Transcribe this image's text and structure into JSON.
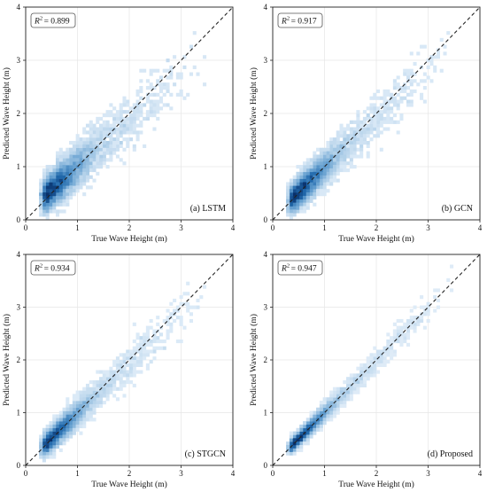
{
  "chart_data": [
    {
      "type": "heatmap",
      "panel_label": "(a) LSTM",
      "r2_label": "= 0.899",
      "xlabel": "True Wave Height (m)",
      "ylabel": "Predicted Wave Height (m)",
      "xlim": [
        0,
        4
      ],
      "ylim": [
        0,
        4
      ],
      "xticks": [
        "0",
        "1",
        "2",
        "3",
        "4"
      ],
      "yticks": [
        "0",
        "1",
        "2",
        "3",
        "4"
      ],
      "reference_line": "y = x (dashed)",
      "colormap": "Blues",
      "fit": {
        "slope": 0.86,
        "intercept": 0.14,
        "spread": 0.17
      },
      "x_range": [
        0.3,
        3.5
      ],
      "density_peak_x": 0.6
    },
    {
      "type": "heatmap",
      "panel_label": "(b) GCN",
      "r2_label": "= 0.917",
      "xlabel": "True Wave Height (m)",
      "ylabel": "Predicted Wave Height (m)",
      "xlim": [
        0,
        4
      ],
      "ylim": [
        0,
        4
      ],
      "xticks": [
        "0",
        "1",
        "2",
        "3",
        "4"
      ],
      "yticks": [
        "0",
        "1",
        "2",
        "3",
        "4"
      ],
      "reference_line": "y = x (dashed)",
      "colormap": "Blues",
      "fit": {
        "slope": 0.93,
        "intercept": 0.05,
        "spread": 0.14
      },
      "x_range": [
        0.3,
        3.5
      ],
      "density_peak_x": 0.6
    },
    {
      "type": "heatmap",
      "panel_label": "(c) STGCN",
      "r2_label": "= 0.934",
      "xlabel": "True Wave Height (m)",
      "ylabel": "Predicted Wave Height (m)",
      "xlim": [
        0,
        4
      ],
      "ylim": [
        0,
        4
      ],
      "xticks": [
        "0",
        "1",
        "2",
        "3",
        "4"
      ],
      "yticks": [
        "0",
        "1",
        "2",
        "3",
        "4"
      ],
      "reference_line": "y = x (dashed)",
      "colormap": "Blues",
      "fit": {
        "slope": 0.95,
        "intercept": 0.04,
        "spread": 0.11
      },
      "x_range": [
        0.3,
        3.5
      ],
      "density_peak_x": 0.6
    },
    {
      "type": "heatmap",
      "panel_label": "(d) Proposed",
      "r2_label": "= 0.947",
      "xlabel": "True Wave Height (m)",
      "ylabel": "Predicted Wave Height (m)",
      "xlim": [
        0,
        4
      ],
      "ylim": [
        0,
        4
      ],
      "xticks": [
        "0",
        "1",
        "2",
        "3",
        "4"
      ],
      "yticks": [
        "0",
        "1",
        "2",
        "3",
        "4"
      ],
      "reference_line": "y = x (dashed)",
      "colormap": "Blues",
      "fit": {
        "slope": 0.98,
        "intercept": 0.02,
        "spread": 0.07
      },
      "x_range": [
        0.3,
        3.5
      ],
      "density_peak_x": 0.6
    }
  ]
}
